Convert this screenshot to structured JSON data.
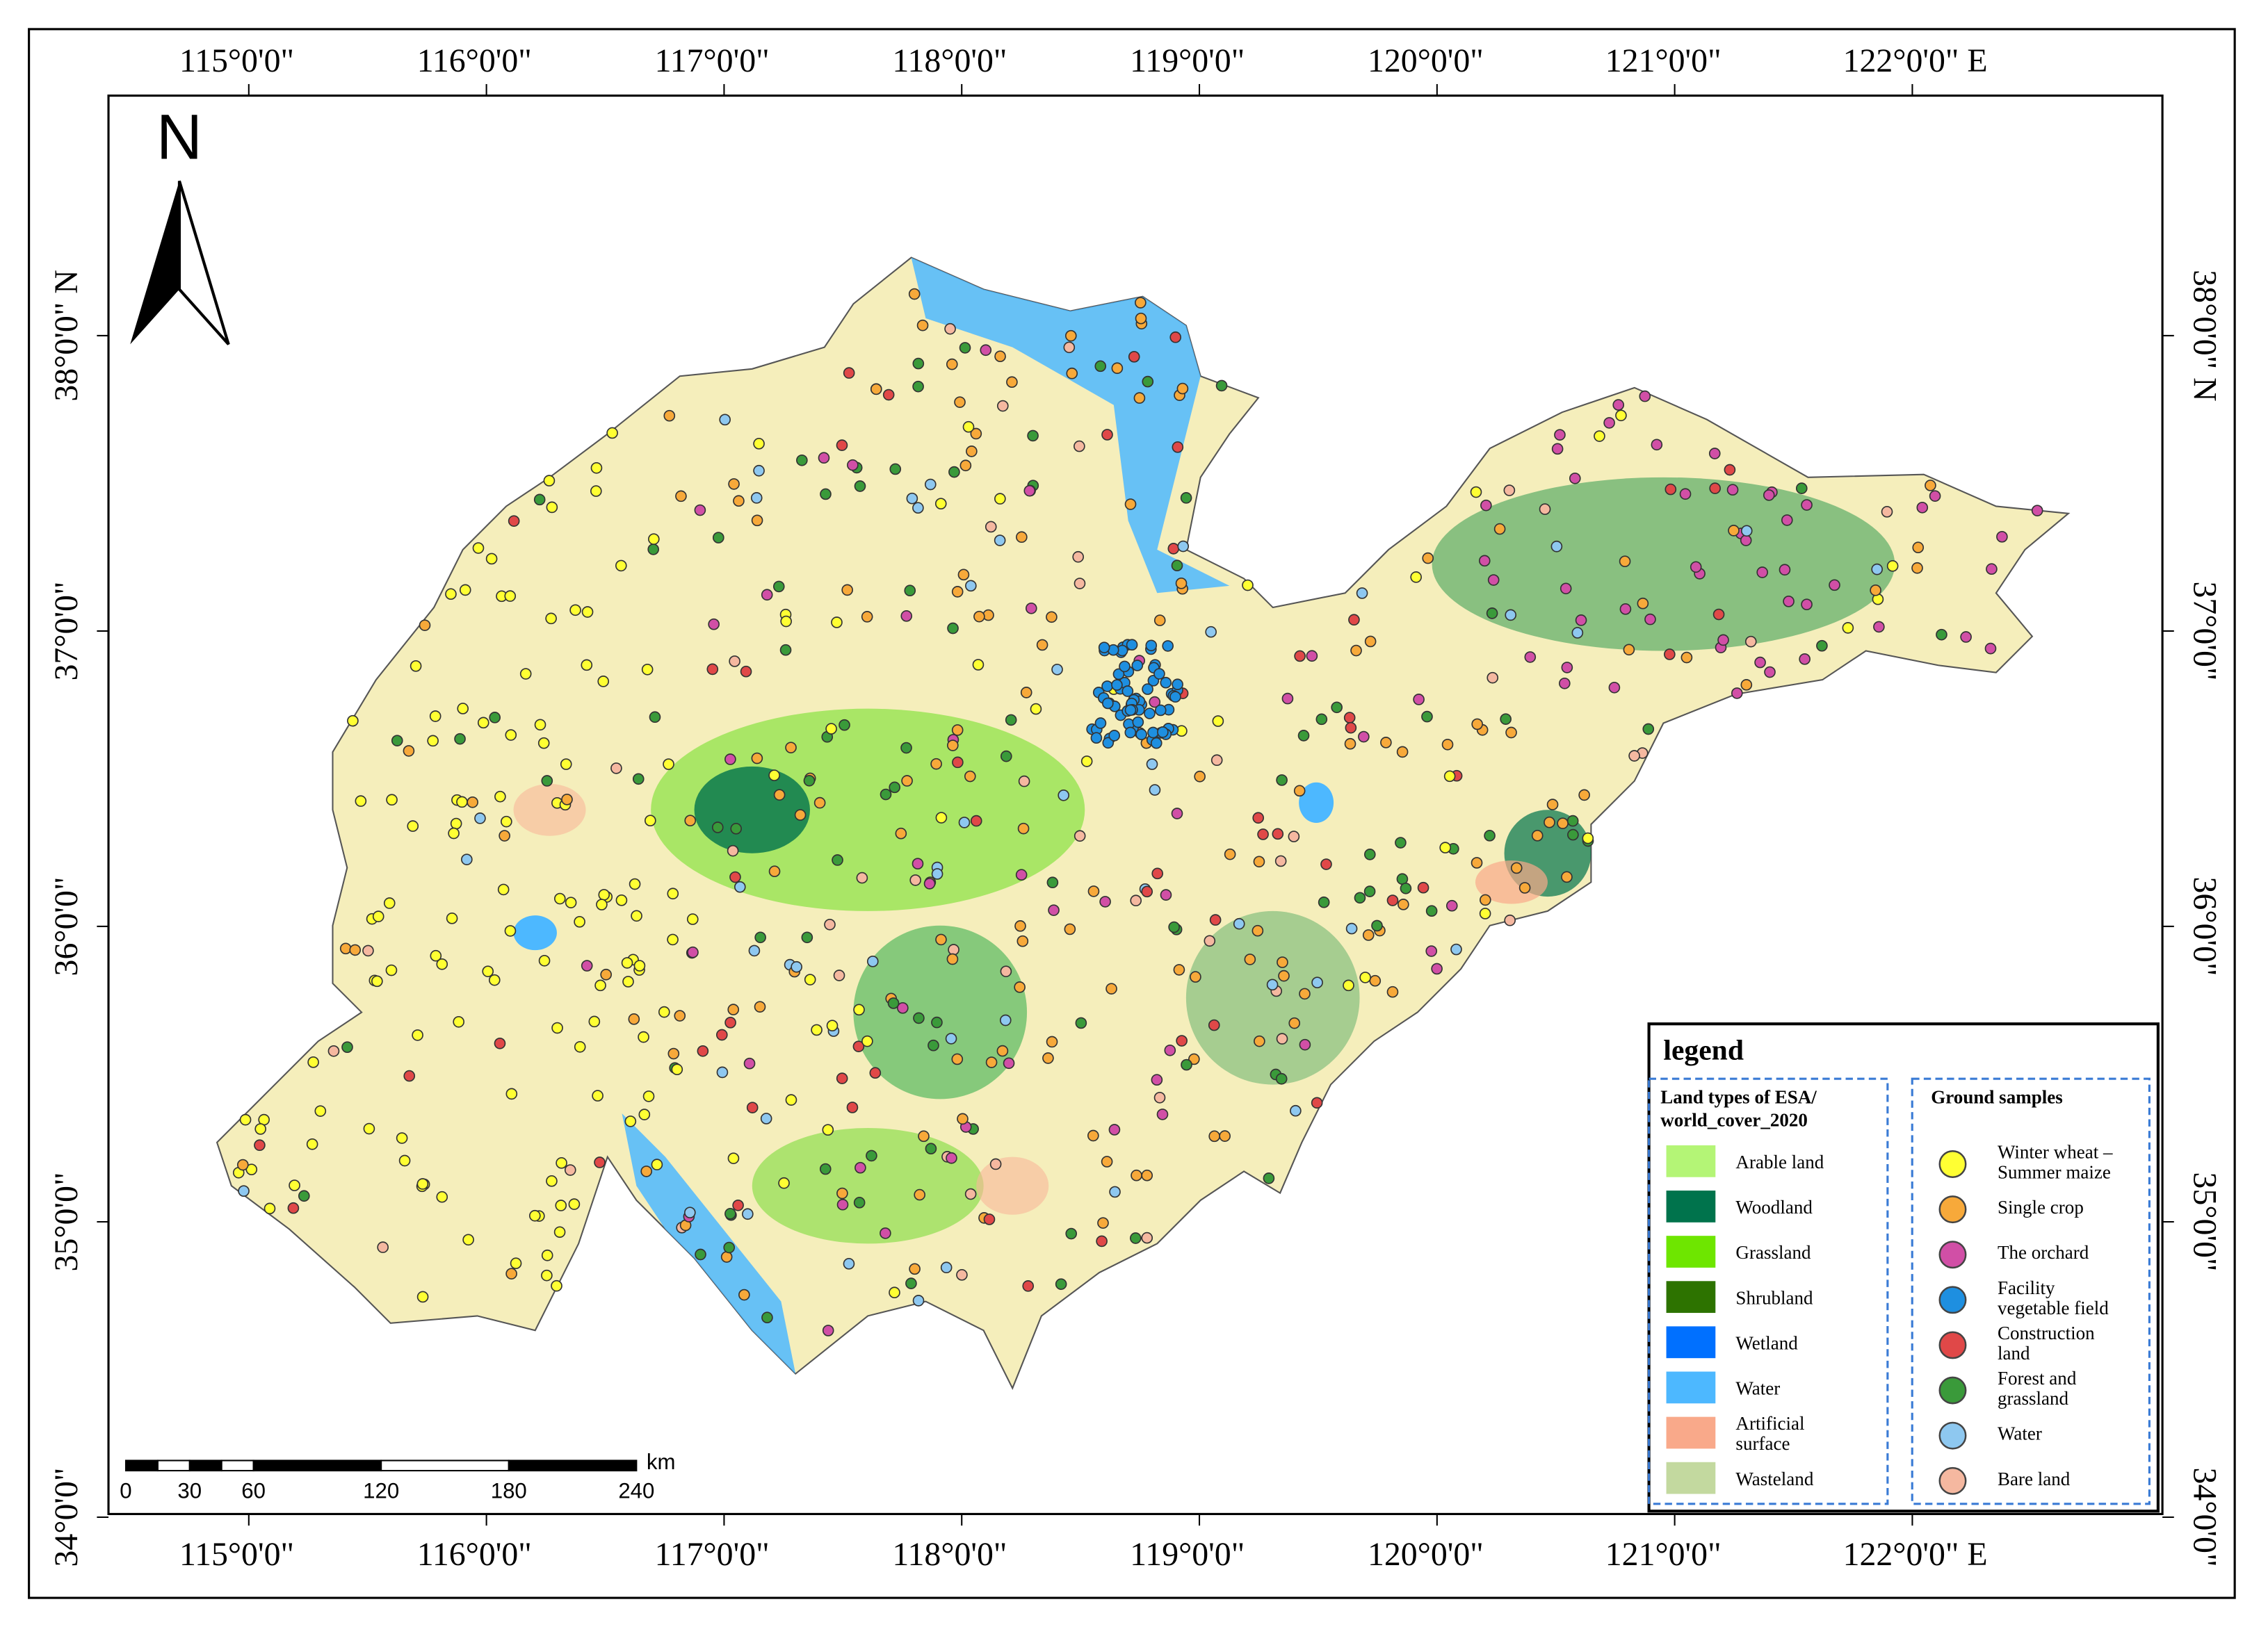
{
  "map": {
    "north": "N",
    "lon_ticks": [
      {
        "value": 115,
        "label": "115°0'0\""
      },
      {
        "value": 116,
        "label": "116°0'0\""
      },
      {
        "value": 117,
        "label": "117°0'0\""
      },
      {
        "value": 118,
        "label": "118°0'0\""
      },
      {
        "value": 119,
        "label": "119°0'0\""
      },
      {
        "value": 120,
        "label": "120°0'0\""
      },
      {
        "value": 121,
        "label": "121°0'0\""
      },
      {
        "value": 122,
        "label": "122°0'0\" E"
      }
    ],
    "lat_ticks": [
      {
        "value": 38,
        "label": "38°0'0\" N"
      },
      {
        "value": 37,
        "label": "37°0'0\""
      },
      {
        "value": 36,
        "label": "36°0'0\""
      },
      {
        "value": 35,
        "label": "35°0'0\""
      },
      {
        "value": 34,
        "label": "34°0'0\""
      }
    ],
    "scale_bar": {
      "ticks": [
        0,
        30,
        60,
        120,
        180,
        240
      ],
      "unit": "km"
    },
    "legend": {
      "title": "legend",
      "land": {
        "title": [
          "Land types of  ESA/",
          "world_cover_2020"
        ],
        "items": [
          {
            "label": [
              "Arable land"
            ],
            "color": "#b4f576"
          },
          {
            "label": [
              "Woodland"
            ],
            "color": "#00734c"
          },
          {
            "label": [
              "Grassland"
            ],
            "color": "#6ee600"
          },
          {
            "label": [
              "Shrubland"
            ],
            "color": "#2d7300"
          },
          {
            "label": [
              "Wetland"
            ],
            "color": "#0070ff"
          },
          {
            "label": [
              "Water"
            ],
            "color": "#4db8ff"
          },
          {
            "label": [
              "Artificial",
              "surface"
            ],
            "color": "#f9a98a"
          },
          {
            "label": [
              "Wasteland"
            ],
            "color": "#c3d99f"
          }
        ]
      },
      "samples": {
        "title": [
          "Ground samples"
        ],
        "items": [
          {
            "label": [
              "Winter wheat –",
              "Summer maize"
            ],
            "color": "#ffff33"
          },
          {
            "label": [
              "Single crop"
            ],
            "color": "#f7a93a"
          },
          {
            "label": [
              "The orchard"
            ],
            "color": "#d14fa6"
          },
          {
            "label": [
              "Facility",
              "vegetable field"
            ],
            "color": "#1e8fe0"
          },
          {
            "label": [
              "Construction",
              "land"
            ],
            "color": "#e04848"
          },
          {
            "label": [
              "Forest and",
              "grassland"
            ],
            "color": "#3a9a3a"
          },
          {
            "label": [
              "Water"
            ],
            "color": "#8ec8f0"
          },
          {
            "label": [
              "Bare land"
            ],
            "color": "#f5b8a0"
          }
        ]
      }
    }
  }
}
